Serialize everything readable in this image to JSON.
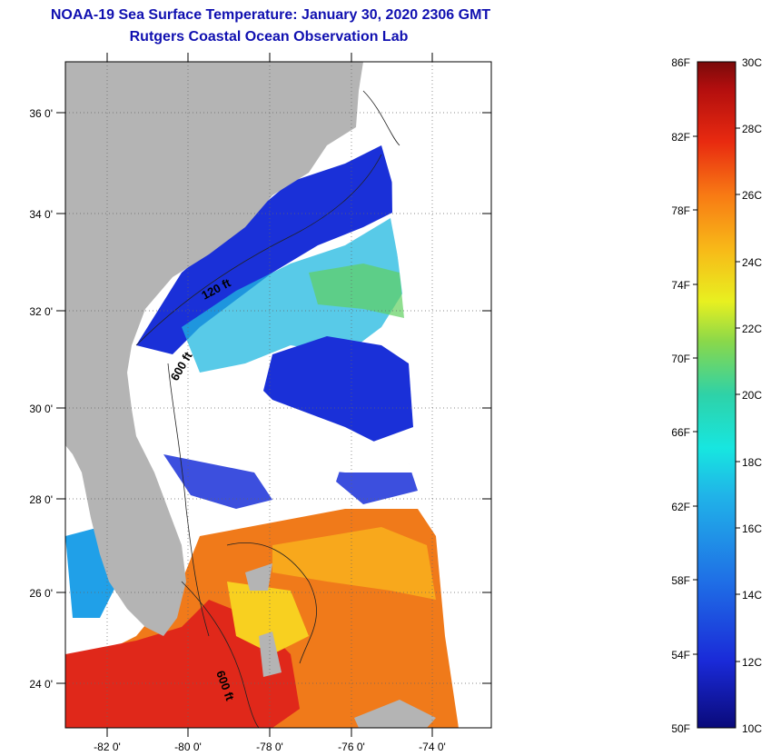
{
  "header": {
    "title": "NOAA-19 Sea Surface Temperature:  January 30, 2020 2306 GMT",
    "subtitle": "Rutgers Coastal Ocean Observation Lab"
  },
  "map": {
    "lat_labels": [
      "36 0'",
      "34 0'",
      "32 0'",
      "30 0'",
      "28 0'",
      "26 0'",
      "24 0'"
    ],
    "lon_labels": [
      "-82 0'",
      "-80 0'",
      "-78 0'",
      "-76 0'",
      "-74 0'"
    ],
    "contour_labels": [
      "120 ft",
      "600 ft",
      "600 ft"
    ],
    "land_color": "#b4b4b4",
    "cloud_color": "#ffffff"
  },
  "colorbar": {
    "fahrenheit_labels": [
      "86F",
      "82F",
      "78F",
      "74F",
      "70F",
      "66F",
      "62F",
      "58F",
      "54F",
      "50F"
    ],
    "celsius_labels": [
      "30C",
      "28C",
      "26C",
      "24C",
      "22C",
      "20C",
      "18C",
      "16C",
      "14C",
      "12C",
      "10C"
    ]
  }
}
